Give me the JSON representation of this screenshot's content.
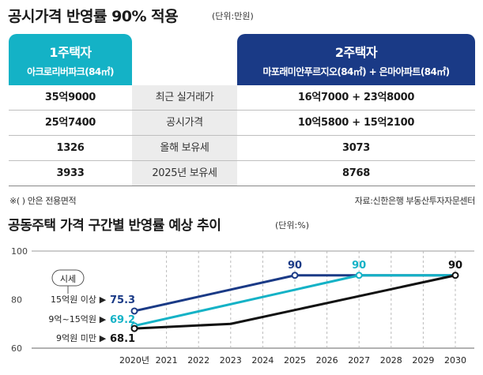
{
  "table": {
    "title": "공시가격 반영률 90% 적용",
    "unit": "(단위:만원)",
    "left_header": {
      "main": "1주택자",
      "sub": "아크로리버파크(84㎡)"
    },
    "right_header": {
      "main": "2주택자",
      "sub": "마포래미안푸르지오(84㎡) + 은마아파트(84㎡)"
    },
    "rows": [
      {
        "left": "35억9000",
        "label": "최근 실거래가",
        "right": "16억7000 + 23억8000"
      },
      {
        "left": "25억7400",
        "label": "공시가격",
        "right": "10억5800 + 15억2100"
      },
      {
        "left": "1326",
        "label": "올해 보유세",
        "right": "3073"
      },
      {
        "left": "3933",
        "label": "2025년 보유세",
        "right": "8768"
      }
    ],
    "note_left": "※( ) 안은 전용면적",
    "note_right": "자료:신한은행 부동산투자자문센터"
  },
  "chart_data": {
    "type": "line",
    "title": "공동주택 가격 구간별 반영률 예상 추이",
    "unit": "(단위:%)",
    "ylim": [
      60,
      100
    ],
    "yticks": [
      "100",
      "80",
      "60"
    ],
    "categories": [
      "2020년",
      "2021",
      "2022",
      "2023",
      "2024",
      "2025",
      "2026",
      "2027",
      "2028",
      "2029",
      "2030"
    ],
    "legend_title": "시세",
    "series": [
      {
        "name": "15억원 이상",
        "color": "#1a3a86",
        "points": [
          [
            0,
            75.3
          ],
          [
            5,
            90
          ],
          [
            10,
            90
          ]
        ],
        "start_label": "75.3",
        "marker_label": "90",
        "marker_index": 1
      },
      {
        "name": "9억~15억원",
        "color": "#14b2c6",
        "points": [
          [
            0,
            69.2
          ],
          [
            7,
            90
          ],
          [
            10,
            90
          ]
        ],
        "start_label": "69.2",
        "marker_label": "90",
        "marker_index": 1
      },
      {
        "name": "9억원 미만",
        "color": "#111111",
        "points": [
          [
            0,
            68.1
          ],
          [
            3,
            70
          ],
          [
            10,
            90
          ]
        ],
        "start_label": "68.1",
        "marker_label": "90",
        "marker_index": 2
      }
    ]
  }
}
